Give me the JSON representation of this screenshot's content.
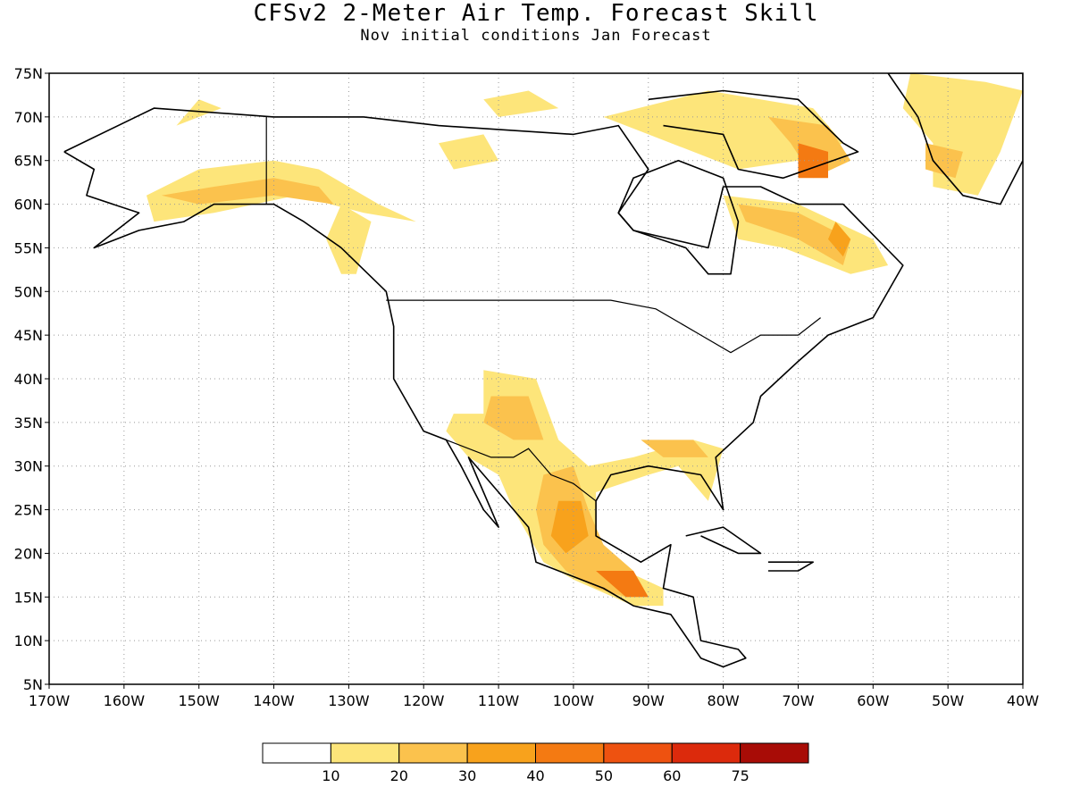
{
  "title": "CFSv2 2-Meter Air Temp. Forecast Skill",
  "subtitle": "Nov initial conditions  Jan Forecast",
  "map": {
    "lon_range": [
      -170,
      -40
    ],
    "lat_range": [
      5,
      75
    ],
    "lat_ticks": [
      {
        "value": 75,
        "label": "75N"
      },
      {
        "value": 70,
        "label": "70N"
      },
      {
        "value": 65,
        "label": "65N"
      },
      {
        "value": 60,
        "label": "60N"
      },
      {
        "value": 55,
        "label": "55N"
      },
      {
        "value": 50,
        "label": "50N"
      },
      {
        "value": 45,
        "label": "45N"
      },
      {
        "value": 40,
        "label": "40N"
      },
      {
        "value": 35,
        "label": "35N"
      },
      {
        "value": 30,
        "label": "30N"
      },
      {
        "value": 25,
        "label": "25N"
      },
      {
        "value": 20,
        "label": "20N"
      },
      {
        "value": 15,
        "label": "15N"
      },
      {
        "value": 10,
        "label": "10N"
      },
      {
        "value": 5,
        "label": "5N"
      }
    ],
    "lon_ticks": [
      {
        "value": -170,
        "label": "170W"
      },
      {
        "value": -160,
        "label": "160W"
      },
      {
        "value": -150,
        "label": "150W"
      },
      {
        "value": -140,
        "label": "140W"
      },
      {
        "value": -130,
        "label": "130W"
      },
      {
        "value": -120,
        "label": "120W"
      },
      {
        "value": -110,
        "label": "110W"
      },
      {
        "value": -100,
        "label": "100W"
      },
      {
        "value": -90,
        "label": "90W"
      },
      {
        "value": -80,
        "label": "80W"
      },
      {
        "value": -70,
        "label": "70W"
      },
      {
        "value": -60,
        "label": "60W"
      },
      {
        "value": -50,
        "label": "50W"
      },
      {
        "value": -40,
        "label": "40W"
      }
    ],
    "gridlines": "dotted"
  },
  "colorbar": {
    "labels": [
      "10",
      "20",
      "30",
      "40",
      "50",
      "60",
      "75"
    ],
    "colors": [
      "#ffffff",
      "#fde57a",
      "#fbc24d",
      "#f8a21c",
      "#f47a12",
      "#ee5210",
      "#dc2a0c",
      "#a80c06"
    ]
  },
  "skill_regions": [
    {
      "level": 1,
      "points": [
        [
          -157,
          61
        ],
        [
          -150,
          64
        ],
        [
          -140,
          65
        ],
        [
          -134,
          64
        ],
        [
          -126,
          60
        ],
        [
          -121,
          58
        ],
        [
          -128,
          59
        ],
        [
          -137,
          61
        ],
        [
          -148,
          59
        ],
        [
          -156,
          58
        ]
      ]
    },
    {
      "level": 2,
      "points": [
        [
          -155,
          61
        ],
        [
          -148,
          62
        ],
        [
          -140,
          63
        ],
        [
          -134,
          62
        ],
        [
          -132,
          60
        ],
        [
          -140,
          61
        ],
        [
          -150,
          60
        ]
      ]
    },
    {
      "level": 1,
      "points": [
        [
          -129,
          52
        ],
        [
          -127,
          58
        ],
        [
          -131,
          60
        ],
        [
          -133,
          56
        ],
        [
          -131,
          52
        ]
      ]
    },
    {
      "level": 1,
      "points": [
        [
          -150,
          72
        ],
        [
          -153,
          69
        ],
        [
          -147,
          71
        ]
      ]
    },
    {
      "level": 1,
      "points": [
        [
          -106,
          73
        ],
        [
          -102,
          71
        ],
        [
          -110,
          70
        ],
        [
          -112,
          72
        ]
      ]
    },
    {
      "level": 1,
      "points": [
        [
          -118,
          67
        ],
        [
          -112,
          68
        ],
        [
          -110,
          65
        ],
        [
          -116,
          64
        ]
      ]
    },
    {
      "level": 1,
      "points": [
        [
          -82,
          73
        ],
        [
          -68,
          71
        ],
        [
          -64,
          67
        ],
        [
          -70,
          65
        ],
        [
          -78,
          64
        ],
        [
          -84,
          66
        ],
        [
          -90,
          68
        ],
        [
          -96,
          70
        ]
      ]
    },
    {
      "level": 2,
      "points": [
        [
          -74,
          70
        ],
        [
          -66,
          69
        ],
        [
          -63,
          65
        ],
        [
          -68,
          63
        ],
        [
          -71,
          67
        ]
      ]
    },
    {
      "level": 4,
      "points": [
        [
          -70,
          67
        ],
        [
          -66,
          66
        ],
        [
          -66,
          63
        ],
        [
          -70,
          63
        ]
      ]
    },
    {
      "level": 1,
      "points": [
        [
          -80,
          61
        ],
        [
          -70,
          60
        ],
        [
          -60,
          56
        ],
        [
          -58,
          53
        ],
        [
          -63,
          52
        ],
        [
          -72,
          55
        ],
        [
          -78,
          56
        ]
      ]
    },
    {
      "level": 2,
      "points": [
        [
          -78,
          60
        ],
        [
          -70,
          59
        ],
        [
          -63,
          56
        ],
        [
          -64,
          53
        ],
        [
          -70,
          56
        ],
        [
          -77,
          58
        ]
      ]
    },
    {
      "level": 3,
      "points": [
        [
          -65,
          58
        ],
        [
          -63,
          56
        ],
        [
          -64,
          54
        ],
        [
          -66,
          56
        ]
      ]
    },
    {
      "level": 1,
      "points": [
        [
          -55,
          75
        ],
        [
          -45,
          74
        ],
        [
          -40,
          73
        ],
        [
          -43,
          66
        ],
        [
          -46,
          61
        ],
        [
          -52,
          62
        ],
        [
          -52,
          67
        ],
        [
          -56,
          71
        ]
      ]
    },
    {
      "level": 2,
      "points": [
        [
          -53,
          67
        ],
        [
          -48,
          66
        ],
        [
          -49,
          63
        ],
        [
          -53,
          64
        ]
      ]
    },
    {
      "level": 1,
      "points": [
        [
          -112,
          41
        ],
        [
          -105,
          40
        ],
        [
          -102,
          33
        ],
        [
          -98,
          30
        ],
        [
          -92,
          31
        ],
        [
          -88,
          32
        ],
        [
          -84,
          33
        ],
        [
          -80,
          32
        ],
        [
          -82,
          26
        ],
        [
          -86,
          30
        ],
        [
          -90,
          29
        ],
        [
          -97,
          27
        ],
        [
          -97,
          22
        ],
        [
          -93,
          18
        ],
        [
          -88,
          16
        ],
        [
          -88,
          14
        ],
        [
          -92,
          14
        ],
        [
          -100,
          17
        ],
        [
          -104,
          19
        ],
        [
          -106,
          22
        ],
        [
          -108,
          25
        ],
        [
          -110,
          29
        ],
        [
          -114,
          31
        ],
        [
          -117,
          34
        ],
        [
          -116,
          36
        ],
        [
          -112,
          36
        ]
      ]
    },
    {
      "level": 2,
      "points": [
        [
          -111,
          38
        ],
        [
          -106,
          38
        ],
        [
          -104,
          33
        ],
        [
          -108,
          33
        ],
        [
          -112,
          35
        ]
      ]
    },
    {
      "level": 2,
      "points": [
        [
          -104,
          29
        ],
        [
          -100,
          30
        ],
        [
          -98,
          25
        ],
        [
          -96,
          21
        ],
        [
          -92,
          18
        ],
        [
          -90,
          15
        ],
        [
          -93,
          15
        ],
        [
          -97,
          16
        ],
        [
          -101,
          18
        ],
        [
          -104,
          21
        ],
        [
          -105,
          25
        ]
      ]
    },
    {
      "level": 3,
      "points": [
        [
          -102,
          26
        ],
        [
          -99,
          26
        ],
        [
          -98,
          22
        ],
        [
          -101,
          20
        ],
        [
          -103,
          22
        ]
      ]
    },
    {
      "level": 4,
      "points": [
        [
          -97,
          18
        ],
        [
          -92,
          18
        ],
        [
          -90,
          15
        ],
        [
          -93,
          15
        ]
      ]
    },
    {
      "level": 2,
      "points": [
        [
          -91,
          33
        ],
        [
          -84,
          33
        ],
        [
          -82,
          31
        ],
        [
          -88,
          31
        ]
      ]
    }
  ],
  "coastline_hints": [
    {
      "name": "north-america-outline",
      "points": [
        [
          -168,
          66
        ],
        [
          -156,
          71
        ],
        [
          -140,
          70
        ],
        [
          -128,
          70
        ],
        [
          -118,
          69
        ],
        [
          -100,
          68
        ],
        [
          -94,
          69
        ],
        [
          -90,
          64
        ],
        [
          -94,
          59
        ],
        [
          -92,
          57
        ],
        [
          -82,
          55
        ],
        [
          -80,
          62
        ],
        [
          -75,
          62
        ],
        [
          -70,
          60
        ],
        [
          -64,
          60
        ],
        [
          -56,
          53
        ],
        [
          -60,
          47
        ],
        [
          -66,
          45
        ],
        [
          -70,
          42
        ],
        [
          -75,
          38
        ],
        [
          -76,
          35
        ],
        [
          -81,
          31
        ],
        [
          -80,
          25
        ],
        [
          -83,
          29
        ],
        [
          -90,
          30
        ],
        [
          -95,
          29
        ],
        [
          -97,
          26
        ],
        [
          -97,
          22
        ],
        [
          -91,
          19
        ],
        [
          -87,
          21
        ],
        [
          -88,
          16
        ],
        [
          -84,
          15
        ],
        [
          -83,
          10
        ],
        [
          -78,
          9
        ],
        [
          -77,
          8
        ],
        [
          -80,
          7
        ],
        [
          -83,
          8
        ],
        [
          -87,
          13
        ],
        [
          -92,
          14
        ],
        [
          -96,
          16
        ],
        [
          -105,
          19
        ],
        [
          -106,
          23
        ],
        [
          -110,
          27
        ],
        [
          -114,
          31
        ],
        [
          -113,
          29
        ],
        [
          -110,
          23
        ],
        [
          -112,
          25
        ],
        [
          -115,
          30
        ],
        [
          -117,
          33
        ],
        [
          -120,
          34
        ],
        [
          -124,
          40
        ],
        [
          -124,
          46
        ],
        [
          -125,
          50
        ],
        [
          -131,
          55
        ],
        [
          -136,
          58
        ],
        [
          -140,
          60
        ],
        [
          -148,
          60
        ],
        [
          -152,
          58
        ],
        [
          -158,
          57
        ],
        [
          -164,
          55
        ],
        [
          -158,
          59
        ],
        [
          -165,
          61
        ],
        [
          -164,
          64
        ],
        [
          -168,
          66
        ]
      ]
    },
    {
      "name": "greenland-outline",
      "points": [
        [
          -58,
          75
        ],
        [
          -46,
          75
        ],
        [
          -40,
          75
        ],
        [
          -40,
          65
        ],
        [
          -43,
          60
        ],
        [
          -48,
          61
        ],
        [
          -52,
          65
        ],
        [
          -54,
          70
        ],
        [
          -58,
          75
        ]
      ]
    },
    {
      "name": "hudson-bay-outline",
      "points": [
        [
          -94,
          59
        ],
        [
          -92,
          63
        ],
        [
          -86,
          65
        ],
        [
          -80,
          63
        ],
        [
          -78,
          58
        ],
        [
          -79,
          52
        ],
        [
          -82,
          52
        ],
        [
          -85,
          55
        ],
        [
          -92,
          57
        ],
        [
          -94,
          59
        ]
      ]
    },
    {
      "name": "baffin-island-outline",
      "points": [
        [
          -90,
          72
        ],
        [
          -80,
          73
        ],
        [
          -70,
          72
        ],
        [
          -64,
          67
        ],
        [
          -62,
          66
        ],
        [
          -72,
          63
        ],
        [
          -78,
          64
        ],
        [
          -80,
          68
        ],
        [
          -88,
          69
        ]
      ]
    },
    {
      "name": "cuba-outline",
      "points": [
        [
          -85,
          22
        ],
        [
          -80,
          23
        ],
        [
          -75,
          20
        ],
        [
          -78,
          20
        ],
        [
          -83,
          22
        ]
      ]
    },
    {
      "name": "hispaniola-outline",
      "points": [
        [
          -74,
          19
        ],
        [
          -68,
          19
        ],
        [
          -70,
          18
        ],
        [
          -74,
          18
        ]
      ]
    }
  ],
  "boundaries": [
    {
      "name": "alaska-canada-border",
      "points": [
        [
          -141,
          70
        ],
        [
          -141,
          60
        ]
      ]
    },
    {
      "name": "us-canada-border",
      "points": [
        [
          -125,
          49
        ],
        [
          -95,
          49
        ],
        [
          -89,
          48
        ],
        [
          -83,
          45
        ],
        [
          -79,
          43
        ],
        [
          -75,
          45
        ],
        [
          -70,
          45
        ],
        [
          -67,
          47
        ]
      ]
    },
    {
      "name": "us-mexico-border",
      "points": [
        [
          -117,
          33
        ],
        [
          -111,
          31
        ],
        [
          -108,
          31
        ],
        [
          -106,
          32
        ],
        [
          -103,
          29
        ],
        [
          -100,
          28
        ],
        [
          -97,
          26
        ]
      ]
    }
  ]
}
